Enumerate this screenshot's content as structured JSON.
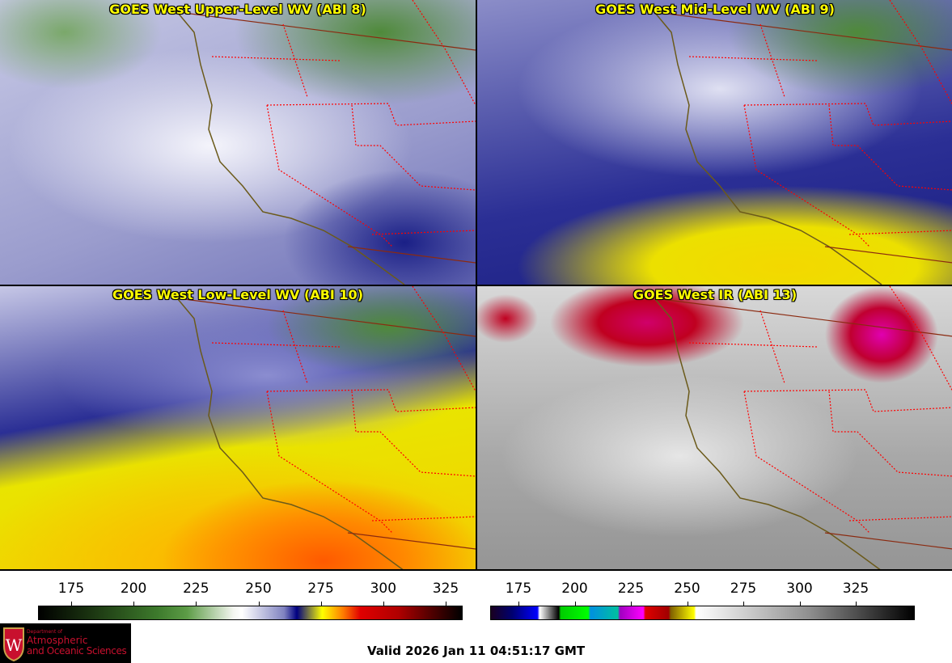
{
  "panels": [
    {
      "title": "GOES West Upper-Level WV (ABI 8)"
    },
    {
      "title": "GOES West Mid-Level WV (ABI 9)"
    },
    {
      "title": "GOES West Low-Level WV (ABI 10)"
    },
    {
      "title": "GOES West IR (ABI 13)"
    }
  ],
  "colorbars": [
    {
      "name": "wv",
      "ticks": [
        175,
        200,
        225,
        250,
        275,
        300,
        325
      ]
    },
    {
      "name": "ir",
      "ticks": [
        175,
        200,
        225,
        250,
        275,
        300,
        325
      ]
    }
  ],
  "logo": {
    "line1": "Department of",
    "line2": "Atmospheric",
    "line3": "and Oceanic Sciences",
    "emblem_letter": "W"
  },
  "valid_time": "Valid 2026 Jan 11 04:51:17 GMT",
  "colors": {
    "title": "#ffff00",
    "state_border": "#ff0000",
    "coastline": "#6b5a1a",
    "logo_red": "#c8102e"
  }
}
